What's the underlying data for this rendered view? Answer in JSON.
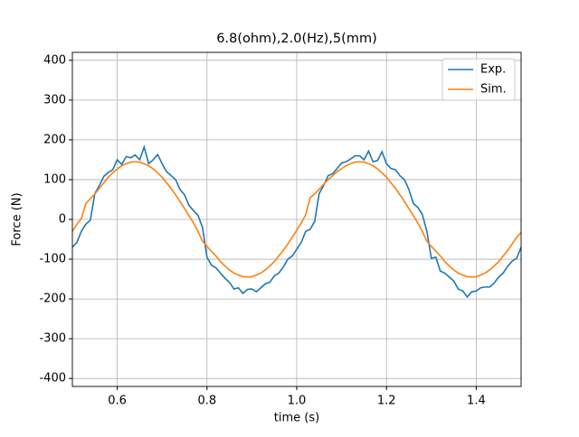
{
  "chart_data": {
    "type": "line",
    "title": "6.8(ohm),2.0(Hz),5(mm)",
    "x_label": "time (s)",
    "y_label": "Force (N)",
    "x": [
      0.5,
      0.51,
      0.52,
      0.53,
      0.54,
      0.55,
      0.56,
      0.57,
      0.58,
      0.59,
      0.6,
      0.61,
      0.62,
      0.63,
      0.64,
      0.65,
      0.66,
      0.67,
      0.68,
      0.69,
      0.7,
      0.71,
      0.72,
      0.73,
      0.74,
      0.75,
      0.76,
      0.77,
      0.78,
      0.79,
      0.8,
      0.81,
      0.82,
      0.83,
      0.84,
      0.85,
      0.86,
      0.87,
      0.88,
      0.89,
      0.9,
      0.91,
      0.92,
      0.93,
      0.94,
      0.95,
      0.96,
      0.97,
      0.98,
      0.99,
      1.0,
      1.01,
      1.02,
      1.03,
      1.04,
      1.05,
      1.06,
      1.07,
      1.08,
      1.09,
      1.1,
      1.11,
      1.12,
      1.13,
      1.14,
      1.15,
      1.16,
      1.17,
      1.18,
      1.19,
      1.2,
      1.21,
      1.22,
      1.23,
      1.24,
      1.25,
      1.26,
      1.27,
      1.28,
      1.29,
      1.3,
      1.31,
      1.32,
      1.33,
      1.34,
      1.35,
      1.36,
      1.37,
      1.38,
      1.39,
      1.4,
      1.41,
      1.42,
      1.43,
      1.44,
      1.45,
      1.46,
      1.47,
      1.48,
      1.49,
      1.5
    ],
    "series": [
      {
        "name": "Exp.",
        "color": "#1f77b4",
        "values": [
          -70,
          -58,
          -30,
          -12,
          -2,
          65,
          85,
          108,
          118,
          125,
          150,
          138,
          158,
          155,
          162,
          150,
          182,
          140,
          150,
          163,
          140,
          120,
          110,
          100,
          75,
          62,
          35,
          22,
          10,
          -20,
          -95,
          -115,
          -122,
          -135,
          -148,
          -158,
          -175,
          -172,
          -186,
          -176,
          -175,
          -182,
          -172,
          -162,
          -158,
          -142,
          -135,
          -120,
          -100,
          -92,
          -75,
          -58,
          -30,
          -25,
          -5,
          65,
          85,
          110,
          115,
          128,
          142,
          145,
          152,
          160,
          160,
          150,
          172,
          145,
          148,
          170,
          140,
          128,
          125,
          110,
          100,
          75,
          40,
          30,
          12,
          -30,
          -98,
          -95,
          -130,
          -135,
          -145,
          -155,
          -175,
          -180,
          -195,
          -182,
          -180,
          -172,
          -170,
          -170,
          -160,
          -145,
          -135,
          -118,
          -105,
          -98,
          -70
        ]
      },
      {
        "name": "Sim.",
        "color": "#ff7f0e",
        "values": [
          -30,
          -12,
          2,
          40,
          52,
          64,
          78,
          92,
          106,
          117,
          127,
          135,
          140,
          144,
          145,
          144,
          140,
          135,
          127,
          117,
          106,
          92,
          78,
          62,
          45,
          27,
          9,
          -9,
          -30,
          -55,
          -68,
          -80,
          -92,
          -106,
          -117,
          -127,
          -135,
          -140,
          -144,
          -145,
          -144,
          -140,
          -135,
          -127,
          -117,
          -106,
          -92,
          -78,
          -62,
          -45,
          -27,
          -9,
          12,
          55,
          64,
          76,
          88,
          100,
          110,
          120,
          128,
          135,
          140,
          144,
          145,
          144,
          140,
          135,
          127,
          117,
          106,
          92,
          78,
          62,
          45,
          27,
          9,
          -9,
          -30,
          -55,
          -68,
          -80,
          -92,
          -106,
          -117,
          -127,
          -135,
          -140,
          -144,
          -145,
          -144,
          -140,
          -135,
          -127,
          -117,
          -106,
          -92,
          -78,
          -62,
          -45,
          -33
        ]
      }
    ],
    "xlim": [
      0.5,
      1.5
    ],
    "ylim": [
      -420,
      420
    ],
    "xticks": [
      0.6,
      0.8,
      {
        "value": 1,
        "label": "1.0"
      },
      1.2,
      1.4
    ],
    "yticks": [
      -400,
      -300,
      -200,
      -100,
      0,
      100,
      200,
      300,
      400
    ],
    "grid": true,
    "legend": "upper right"
  }
}
